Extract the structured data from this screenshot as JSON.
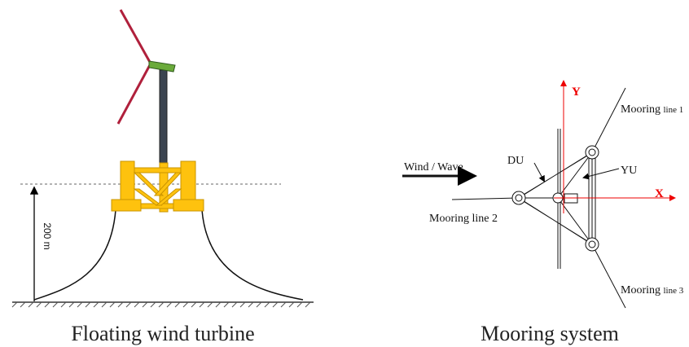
{
  "left": {
    "depth_label": "200 m",
    "caption": "Floating wind turbine"
  },
  "right": {
    "caption": "Mooring system",
    "wind_label": "Wind / Wave",
    "du_label": "DU",
    "yu_label": "YU",
    "y_axis": "Y",
    "x_axis": "X",
    "mooring_lines": [
      {
        "word": "Mooring",
        "suffix": "line 1"
      },
      {
        "word": "Mooring line 2"
      },
      {
        "word": "Mooring",
        "suffix": "line 3"
      }
    ]
  }
}
